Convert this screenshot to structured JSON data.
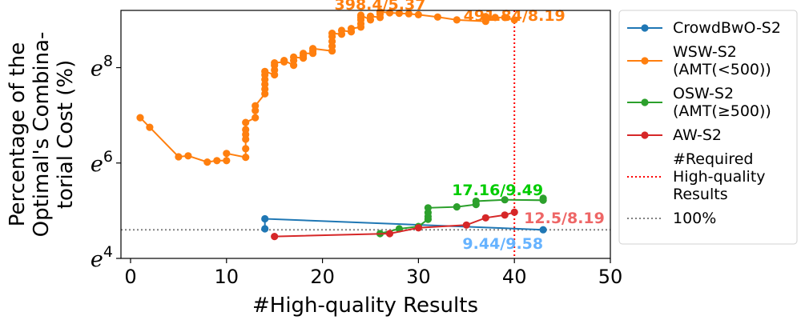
{
  "chart_data": {
    "type": "line",
    "title": "",
    "xlabel": "#High-quality Results",
    "ylabel_lines": [
      "Percentage of the",
      "Optimal's Combina-",
      "torial Cost (%)"
    ],
    "xlim": [
      -1,
      50
    ],
    "ylim_ln": [
      4,
      9.2
    ],
    "y_scale": "log",
    "x_ticks": [
      0,
      10,
      20,
      30,
      40,
      50
    ],
    "x_tick_labels": [
      "0",
      "10",
      "20",
      "30",
      "40",
      "50"
    ],
    "y_ticks_ln": [
      4,
      6,
      8
    ],
    "y_tick_base": "e",
    "y_tick_exponents": [
      "4",
      "6",
      "8"
    ],
    "grid": false,
    "legend_position": "outside-right",
    "series": [
      {
        "name": "CrowdBwO-S2",
        "color": "#1f77b4",
        "points": [
          [
            14,
            4.62
          ],
          [
            14,
            4.83
          ],
          [
            43,
            4.6
          ]
        ]
      },
      {
        "name": "WSW-S2 (AMT(<500))",
        "legend_lines": [
          "WSW-S2",
          "(AMT(<500))"
        ],
        "color": "#ff7f0e",
        "points": [
          [
            1,
            6.95
          ],
          [
            2,
            6.75
          ],
          [
            5,
            6.13
          ],
          [
            6,
            6.15
          ],
          [
            8,
            6.02
          ],
          [
            9,
            6.05
          ],
          [
            10,
            6.05
          ],
          [
            10,
            6.2
          ],
          [
            12,
            6.12
          ],
          [
            12,
            6.3
          ],
          [
            12,
            6.5
          ],
          [
            12,
            6.6
          ],
          [
            12,
            6.7
          ],
          [
            12,
            6.85
          ],
          [
            13,
            6.95
          ],
          [
            13,
            7.1
          ],
          [
            13,
            7.2
          ],
          [
            14,
            7.45
          ],
          [
            14,
            7.55
          ],
          [
            14,
            7.65
          ],
          [
            14,
            7.75
          ],
          [
            14,
            7.85
          ],
          [
            14,
            7.92
          ],
          [
            15,
            7.85
          ],
          [
            15,
            7.95
          ],
          [
            15,
            8.05
          ],
          [
            15,
            8.1
          ],
          [
            16,
            8.12
          ],
          [
            16,
            8.15
          ],
          [
            17,
            8.05
          ],
          [
            17,
            8.15
          ],
          [
            17,
            8.22
          ],
          [
            18,
            8.2
          ],
          [
            18,
            8.25
          ],
          [
            18,
            8.3
          ],
          [
            19,
            8.3
          ],
          [
            19,
            8.35
          ],
          [
            19,
            8.4
          ],
          [
            21,
            8.35
          ],
          [
            21,
            8.45
          ],
          [
            21,
            8.55
          ],
          [
            21,
            8.65
          ],
          [
            21,
            8.72
          ],
          [
            22,
            8.7
          ],
          [
            22,
            8.78
          ],
          [
            23,
            8.75
          ],
          [
            23,
            8.82
          ],
          [
            24,
            8.85
          ],
          [
            24,
            8.92
          ],
          [
            24,
            9.0
          ],
          [
            24,
            9.05
          ],
          [
            24,
            9.1
          ],
          [
            25,
            9.0
          ],
          [
            25,
            9.08
          ],
          [
            26,
            9.05
          ],
          [
            26,
            9.12
          ],
          [
            26,
            9.17
          ],
          [
            27,
            9.15
          ],
          [
            28,
            9.14
          ],
          [
            29,
            9.13
          ],
          [
            30,
            9.11
          ],
          [
            32,
            9.06
          ],
          [
            34,
            9.0
          ],
          [
            37,
            8.97
          ],
          [
            37,
            9.02
          ],
          [
            37,
            9.07
          ],
          [
            38,
            9.05
          ],
          [
            39,
            9.05
          ],
          [
            40,
            9.0
          ]
        ]
      },
      {
        "name": "OSW-S2 (AMT(≥500))",
        "legend_lines": [
          "OSW-S2",
          "(AMT(≥500))"
        ],
        "color": "#2ca02c",
        "points": [
          [
            26,
            4.52
          ],
          [
            28,
            4.62
          ],
          [
            30,
            4.67
          ],
          [
            31,
            4.82
          ],
          [
            31,
            4.88
          ],
          [
            31,
            4.96
          ],
          [
            31,
            5.06
          ],
          [
            34,
            5.08
          ],
          [
            36,
            5.13
          ],
          [
            36,
            5.2
          ],
          [
            39,
            5.23
          ],
          [
            43,
            5.22
          ],
          [
            43,
            5.26
          ]
        ]
      },
      {
        "name": "AW-S2",
        "color": "#d62728",
        "points": [
          [
            15,
            4.46
          ],
          [
            27,
            4.52
          ],
          [
            30,
            4.64
          ],
          [
            35,
            4.7
          ],
          [
            37,
            4.85
          ],
          [
            39,
            4.91
          ],
          [
            40,
            4.97
          ]
        ]
      }
    ],
    "reference_lines": [
      {
        "name": "#Required High-quality Results",
        "legend_lines": [
          "#Required",
          "High-quality",
          "Results"
        ],
        "orientation": "vertical",
        "x": 40,
        "color": "#ff0000",
        "style": "dotted"
      },
      {
        "name": "100%",
        "legend_lines": [
          "100%"
        ],
        "orientation": "horizontal",
        "y_ln": 4.6,
        "color": "#808080",
        "style": "dotted"
      }
    ],
    "annotations": [
      {
        "text": "398.4/5.37",
        "x": 26,
        "y_ln": 9.18,
        "color": "#ff7f0e",
        "anchor": "middle",
        "dy": -2
      },
      {
        "text": "491.84/8.19",
        "x": 40,
        "y_ln": 9.18,
        "color": "#ff7f0e",
        "anchor": "middle",
        "dy": 12
      },
      {
        "text": "17.16/9.49",
        "x": 43,
        "y_ln": 5.26,
        "color": "#00cc00",
        "anchor": "end",
        "dy": -4
      },
      {
        "text": "12.5/8.19",
        "x": 41,
        "y_ln": 4.97,
        "color": "#ee6666",
        "anchor": "start",
        "dy": 14
      },
      {
        "text": "9.44/9.58",
        "x": 43,
        "y_ln": 4.6,
        "color": "#66b3ff",
        "anchor": "end",
        "dy": 24
      }
    ]
  }
}
